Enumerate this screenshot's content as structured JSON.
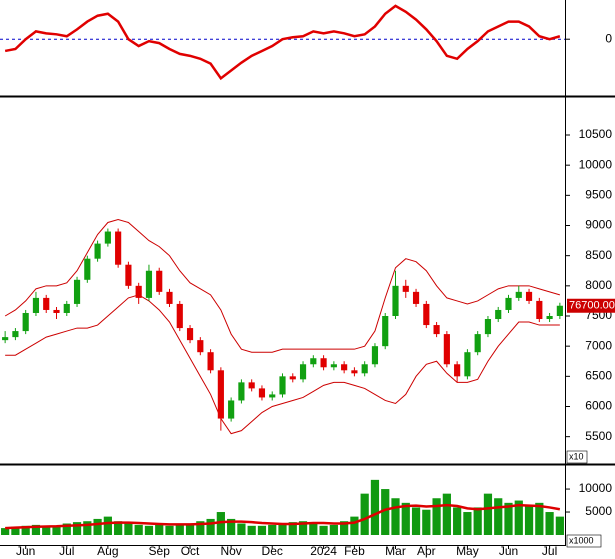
{
  "chart_data": [
    {
      "type": "line",
      "ylim": [
        -57,
        38
      ],
      "yticks": [
        0
      ],
      "grid": true,
      "grid_color": "#0000cc",
      "series": [
        {
          "color": "#e00000",
          "values": [
            -12,
            -10,
            0,
            8,
            6,
            5,
            3,
            10,
            18,
            24,
            26,
            18,
            0,
            -7,
            -2,
            -4,
            -10,
            -15,
            -17,
            -20,
            -25,
            -40,
            -32,
            -24,
            -17,
            -12,
            -7,
            0,
            2,
            3,
            8,
            6,
            8,
            6,
            3,
            5,
            13,
            26,
            34,
            28,
            20,
            10,
            -2,
            -17,
            -20,
            -10,
            -2,
            8,
            13,
            18,
            18,
            13,
            3,
            0,
            3
          ]
        }
      ]
    },
    {
      "type": "candlestick",
      "ylim": [
        5080,
        11130
      ],
      "yticks": [
        5500,
        6000,
        6500,
        7000,
        7500,
        8000,
        8500,
        9000,
        9500,
        10000,
        10500
      ],
      "unit_label": "x10",
      "color_up": "#11a011",
      "color_down": "#e00000",
      "last_price": {
        "value": 7670,
        "label": "76700.00"
      },
      "open": [
        7100,
        7150,
        7250,
        7550,
        7800,
        7600,
        7550,
        7700,
        8100,
        8450,
        8700,
        8900,
        8350,
        8000,
        7800,
        8250,
        7900,
        7700,
        7300,
        7100,
        6900,
        6600,
        5800,
        6100,
        6400,
        6300,
        6150,
        6200,
        6500,
        6450,
        6700,
        6800,
        6650,
        6700,
        6600,
        6550,
        6700,
        7000,
        7500,
        8000,
        7900,
        7700,
        7350,
        7200,
        6700,
        6500,
        6900,
        7200,
        7450,
        7600,
        7800,
        7900,
        7750,
        7450,
        7500
      ],
      "high": [
        7250,
        7300,
        7600,
        7900,
        7850,
        7650,
        7750,
        8150,
        8500,
        8750,
        8950,
        8950,
        8400,
        8050,
        8350,
        8300,
        7950,
        7750,
        7350,
        7150,
        6950,
        6650,
        6150,
        6450,
        6450,
        6350,
        6250,
        6550,
        6550,
        6750,
        6850,
        6850,
        6750,
        6750,
        6650,
        6750,
        7050,
        7550,
        8250,
        8100,
        7950,
        7750,
        7400,
        7250,
        6750,
        6950,
        7250,
        7500,
        7650,
        7850,
        8000,
        7950,
        7800,
        7550,
        7720
      ],
      "low": [
        7050,
        7100,
        7200,
        7500,
        7550,
        7450,
        7500,
        7650,
        8050,
        8400,
        8650,
        8300,
        7950,
        7700,
        7750,
        7850,
        7650,
        7250,
        7050,
        6850,
        6550,
        5600,
        5750,
        6050,
        6250,
        6100,
        6100,
        6150,
        6400,
        6400,
        6650,
        6600,
        6600,
        6550,
        6500,
        6500,
        6650,
        6950,
        7450,
        7800,
        7650,
        7300,
        7150,
        6650,
        6400,
        6450,
        6850,
        7150,
        7400,
        7550,
        7750,
        7700,
        7400,
        7400,
        7450
      ],
      "close": [
        7150,
        7250,
        7550,
        7800,
        7600,
        7550,
        7700,
        8100,
        8450,
        8700,
        8900,
        8350,
        8000,
        7800,
        8250,
        7900,
        7700,
        7300,
        7100,
        6900,
        6600,
        5800,
        6100,
        6400,
        6300,
        6150,
        6200,
        6500,
        6450,
        6700,
        6800,
        6650,
        6700,
        6600,
        6550,
        6700,
        7000,
        7500,
        8000,
        7900,
        7700,
        7350,
        7200,
        6700,
        6500,
        6900,
        7200,
        7450,
        7600,
        7800,
        7900,
        7750,
        7450,
        7500,
        7670
      ],
      "bands": {
        "color": "#cc0000",
        "upper": [
          7500,
          7600,
          7750,
          7950,
          8000,
          8000,
          8050,
          8250,
          8550,
          8850,
          9050,
          9100,
          9050,
          8900,
          8750,
          8650,
          8500,
          8250,
          8050,
          7950,
          7850,
          7600,
          7200,
          6950,
          6900,
          6900,
          6900,
          6950,
          6950,
          6950,
          6950,
          6950,
          6950,
          6950,
          6950,
          7000,
          7250,
          7800,
          8300,
          8450,
          8400,
          8250,
          8000,
          7800,
          7750,
          7700,
          7750,
          7850,
          7950,
          8000,
          8000,
          8000,
          7950,
          7900,
          7850
        ],
        "lower": [
          6850,
          6850,
          6950,
          7050,
          7150,
          7200,
          7250,
          7300,
          7300,
          7350,
          7500,
          7650,
          7800,
          7850,
          7750,
          7600,
          7400,
          7100,
          6800,
          6500,
          6200,
          5800,
          5550,
          5600,
          5750,
          5900,
          6000,
          6050,
          6100,
          6150,
          6250,
          6350,
          6400,
          6400,
          6350,
          6300,
          6200,
          6100,
          6050,
          6200,
          6500,
          6700,
          6750,
          6550,
          6400,
          6400,
          6450,
          6750,
          7000,
          7200,
          7400,
          7400,
          7350,
          7350,
          7350
        ]
      }
    },
    {
      "type": "bar",
      "ylim": [
        0,
        14800
      ],
      "yticks": [
        5000,
        10000
      ],
      "unit_label": "x1000",
      "categories": [
        null,
        null,
        "Jun",
        null,
        null,
        null,
        "Jul",
        null,
        null,
        null,
        "Aug",
        null,
        null,
        null,
        null,
        "Sep",
        null,
        null,
        "Oct",
        null,
        null,
        null,
        "Nov",
        null,
        null,
        null,
        "Dec",
        null,
        null,
        null,
        null,
        "2024",
        null,
        null,
        "Feb",
        null,
        null,
        null,
        "Mar",
        null,
        null,
        "Apr",
        null,
        null,
        null,
        "May",
        null,
        null,
        null,
        "Jun",
        null,
        null,
        null,
        "Jul",
        null
      ],
      "series": [
        {
          "type": "bar",
          "color": "#119911",
          "values": [
            1500,
            1800,
            2000,
            2200,
            2000,
            1800,
            2500,
            2800,
            3000,
            3500,
            4000,
            3000,
            2500,
            2200,
            2000,
            2200,
            2000,
            2500,
            2500,
            3000,
            3500,
            5000,
            3500,
            2500,
            2000,
            2000,
            2200,
            2500,
            2800,
            3000,
            2500,
            2000,
            2200,
            3000,
            4000,
            9000,
            12000,
            10000,
            8000,
            7000,
            6000,
            5500,
            8000,
            9000,
            6000,
            5000,
            6000,
            9000,
            8000,
            7000,
            7500,
            6500,
            7000,
            5000,
            4000
          ]
        },
        {
          "type": "line",
          "color": "#dd0000",
          "values": [
            1500,
            1600,
            1700,
            1800,
            1850,
            1900,
            2000,
            2100,
            2200,
            2400,
            2600,
            2700,
            2700,
            2600,
            2500,
            2400,
            2300,
            2300,
            2300,
            2400,
            2500,
            2800,
            2900,
            2900,
            2800,
            2600,
            2500,
            2400,
            2400,
            2500,
            2600,
            2600,
            2500,
            2500,
            2700,
            3500,
            4500,
            5500,
            6000,
            6300,
            6400,
            6200,
            6300,
            6500,
            6300,
            5800,
            5600,
            5800,
            6000,
            6200,
            6500,
            6400,
            6300,
            6000,
            5600
          ]
        }
      ]
    }
  ]
}
